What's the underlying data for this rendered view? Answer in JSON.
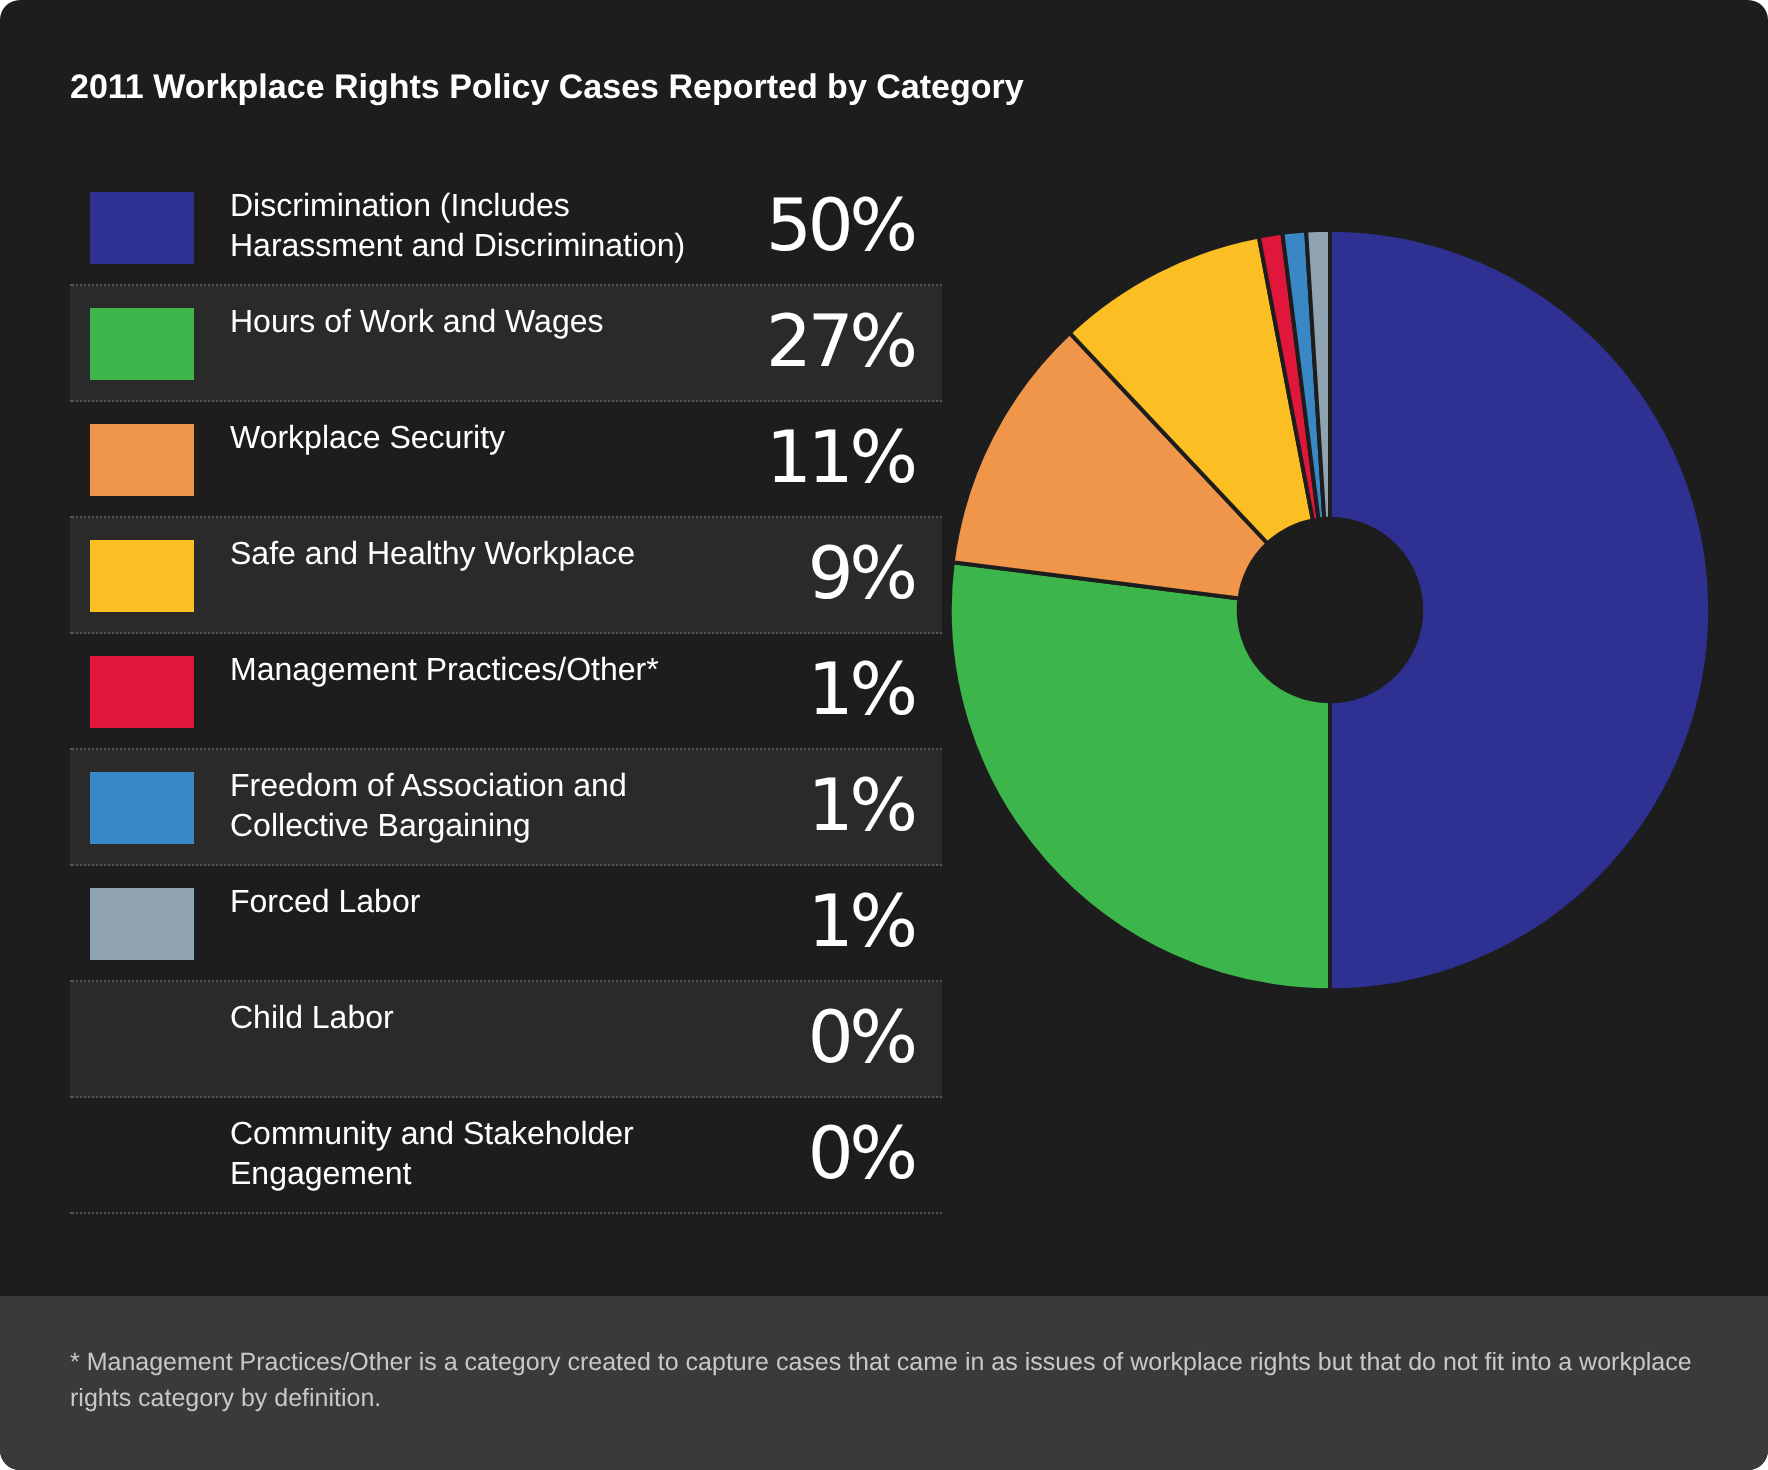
{
  "chart_data": {
    "type": "donut",
    "title": "2011 Workplace Rights Policy Cases Reported by Category",
    "categories": [
      "Discrimination (Includes Harassment and Discrimination)",
      "Hours of Work and Wages",
      "Workplace Security",
      "Safe and Healthy Workplace",
      "Management Practices/Other*",
      "Freedom of Association and Collective Bargaining",
      "Forced Labor",
      "Child Labor",
      "Community and Stakeholder Engagement"
    ],
    "values": [
      50,
      27,
      11,
      9,
      1,
      1,
      1,
      0,
      0
    ],
    "colors": [
      "#2e3192",
      "#3cb54a",
      "#f0964b",
      "#fbbf24",
      "#e0173a",
      "#3a87c6",
      "#8fa3b0",
      null,
      null
    ],
    "value_labels": [
      "50%",
      "27%",
      "11%",
      "9%",
      "1%",
      "1%",
      "1%",
      "0%",
      "0%"
    ],
    "legend": "left",
    "annotations": [
      "* Management Practices/Other is a category created to capture cases that came in as issues of workplace rights but that do not fit into a workplace rights category by definition."
    ]
  }
}
